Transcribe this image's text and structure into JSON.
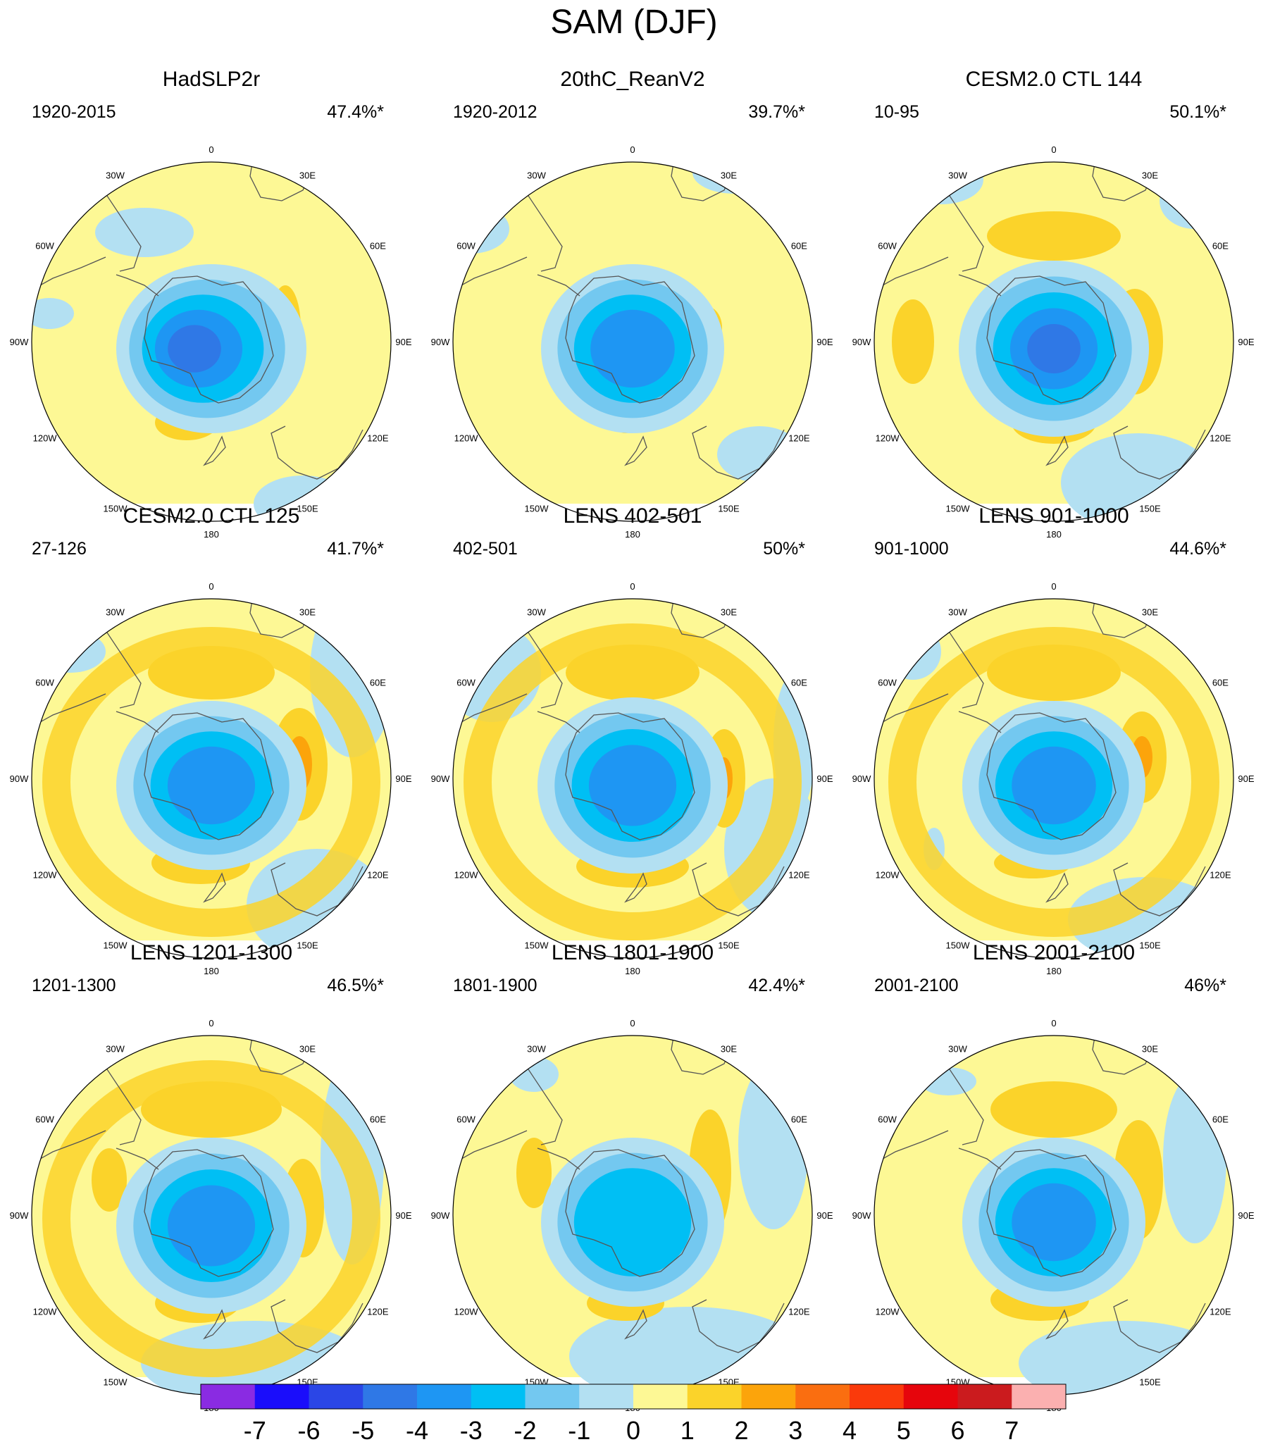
{
  "title": "SAM (DJF)",
  "panels": [
    {
      "title": "HadSLP2r",
      "period": "1920-2015",
      "variance": "47.4%*"
    },
    {
      "title": "20thC_ReanV2",
      "period": "1920-2012",
      "variance": "39.7%*"
    },
    {
      "title": "CESM2.0 CTL 144",
      "period": "10-95",
      "variance": "50.1%*"
    },
    {
      "title": "CESM2.0 CTL 125",
      "period": "27-126",
      "variance": "41.7%*"
    },
    {
      "title": "LENS 402-501",
      "period": "402-501",
      "variance": "50%*"
    },
    {
      "title": "LENS 901-1000",
      "period": "901-1000",
      "variance": "44.6%*"
    },
    {
      "title": "LENS 1201-1300",
      "period": "1201-1300",
      "variance": "46.5%*"
    },
    {
      "title": "LENS 1801-1900",
      "period": "1801-1900",
      "variance": "42.4%*"
    },
    {
      "title": "LENS 2001-2100",
      "period": "2001-2100",
      "variance": "46%*"
    }
  ],
  "longitude_labels": [
    "0",
    "30E",
    "60E",
    "90E",
    "120E",
    "150E",
    "180",
    "150W",
    "120W",
    "90W",
    "60W",
    "30W"
  ],
  "colorbar": {
    "labels": [
      "-7",
      "-6",
      "-5",
      "-4",
      "-3",
      "-2",
      "-1",
      "0",
      "1",
      "2",
      "3",
      "4",
      "5",
      "6",
      "7"
    ],
    "colors": [
      "#8a2be2",
      "#1a0dfb",
      "#2b46e6",
      "#2f78e6",
      "#1e96f3",
      "#00bff4",
      "#73c8f0",
      "#b3e0f2",
      "#fdf895",
      "#fbd32a",
      "#fca40b",
      "#fa6e10",
      "#fa3a0b",
      "#e6050c",
      "#cb1b1e",
      "#fbb0b0"
    ]
  },
  "colors": {
    "land_outline": "#555555",
    "map_edge": "#000000"
  }
}
